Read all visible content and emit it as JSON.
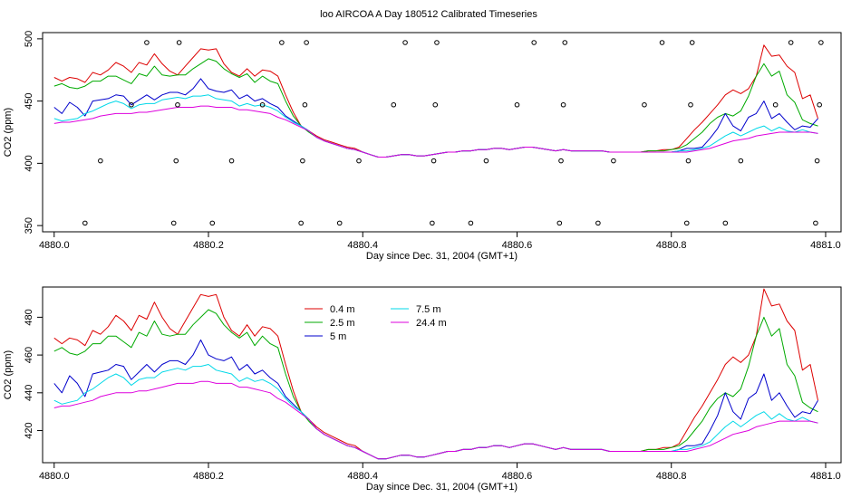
{
  "page": {
    "title": "loo AIRCOA A  Day 180512  Calibrated Timeseries"
  },
  "colors": {
    "0.4 m": "#dd0000",
    "2.5 m": "#00aa00",
    "5 m": "#0000cc",
    "7.5 m": "#00d8e8",
    "24.4 m": "#dd00dd",
    "axis": "#000000"
  },
  "chart_data": [
    {
      "type": "scatter",
      "xlabel": "Day since Dec. 31, 2004 (GMT+1)",
      "ylabel": "CO2 (ppm)",
      "xlim": [
        4879.985,
        4881.02
      ],
      "ylim": [
        345,
        505
      ],
      "xticks": [
        4880.0,
        4880.2,
        4880.4,
        4880.6,
        4880.8,
        4881.0
      ],
      "xtick_labels": [
        "4880.0",
        "4880.2",
        "4880.4",
        "4880.6",
        "4880.8",
        "4881.0"
      ],
      "yticks": [
        350,
        400,
        450,
        500
      ],
      "ytick_labels": [
        "350",
        "400",
        "450",
        "500"
      ],
      "x": [
        4880.0,
        4880.01,
        4880.02,
        4880.03,
        4880.04,
        4880.05,
        4880.06,
        4880.07,
        4880.08,
        4880.09,
        4880.1,
        4880.11,
        4880.12,
        4880.13,
        4880.14,
        4880.15,
        4880.16,
        4880.17,
        4880.18,
        4880.19,
        4880.2,
        4880.21,
        4880.22,
        4880.23,
        4880.24,
        4880.25,
        4880.26,
        4880.27,
        4880.28,
        4880.29,
        4880.3,
        4880.31,
        4880.32,
        4880.33,
        4880.34,
        4880.35,
        4880.36,
        4880.37,
        4880.38,
        4880.39,
        4880.4,
        4880.41,
        4880.42,
        4880.43,
        4880.44,
        4880.45,
        4880.46,
        4880.47,
        4880.48,
        4880.49,
        4880.5,
        4880.51,
        4880.52,
        4880.53,
        4880.54,
        4880.55,
        4880.56,
        4880.57,
        4880.58,
        4880.59,
        4880.6,
        4880.61,
        4880.62,
        4880.63,
        4880.64,
        4880.65,
        4880.66,
        4880.67,
        4880.68,
        4880.69,
        4880.7,
        4880.71,
        4880.72,
        4880.73,
        4880.74,
        4880.75,
        4880.76,
        4880.77,
        4880.78,
        4880.79,
        4880.8,
        4880.81,
        4880.82,
        4880.83,
        4880.84,
        4880.85,
        4880.86,
        4880.87,
        4880.88,
        4880.89,
        4880.9,
        4880.91,
        4880.92,
        4880.93,
        4880.94,
        4880.95,
        4880.96,
        4880.97,
        4880.98,
        4880.99
      ],
      "series": [
        {
          "name": "0.4 m",
          "values": [
            469,
            466,
            469,
            468,
            465,
            473,
            471,
            475,
            481,
            478,
            473,
            481,
            479,
            488,
            480,
            474,
            471,
            478,
            485,
            492,
            491,
            492,
            480,
            473,
            470,
            476,
            470,
            475,
            474,
            470,
            455,
            441,
            430,
            426,
            422,
            419,
            417,
            415,
            413,
            412,
            409,
            407,
            405,
            405,
            406,
            407,
            407,
            406,
            406,
            407,
            408,
            409,
            409,
            410,
            410,
            411,
            411,
            412,
            412,
            411,
            412,
            413,
            413,
            412,
            411,
            410,
            411,
            410,
            410,
            410,
            410,
            410,
            409,
            409,
            409,
            409,
            409,
            410,
            410,
            411,
            411,
            413,
            420,
            427,
            433,
            440,
            447,
            455,
            459,
            456,
            460,
            470,
            495,
            486,
            487,
            478,
            473,
            452,
            455,
            436
          ]
        },
        {
          "name": "2.5 m",
          "values": [
            462,
            464,
            461,
            460,
            462,
            466,
            466,
            470,
            470,
            467,
            464,
            472,
            470,
            478,
            471,
            470,
            471,
            471,
            476,
            480,
            484,
            482,
            476,
            472,
            469,
            472,
            465,
            470,
            466,
            464,
            450,
            438,
            430,
            425,
            421,
            418,
            416,
            414,
            412,
            411,
            409,
            407,
            405,
            405,
            406,
            407,
            407,
            406,
            406,
            407,
            408,
            409,
            409,
            410,
            410,
            411,
            411,
            412,
            412,
            411,
            412,
            413,
            413,
            412,
            411,
            410,
            411,
            410,
            410,
            410,
            410,
            410,
            409,
            409,
            409,
            409,
            409,
            410,
            410,
            410,
            411,
            412,
            415,
            420,
            425,
            432,
            437,
            440,
            438,
            442,
            454,
            470,
            480,
            470,
            474,
            455,
            449,
            435,
            432,
            430
          ]
        },
        {
          "name": "5 m",
          "values": [
            445,
            440,
            449,
            445,
            438,
            450,
            451,
            452,
            455,
            454,
            447,
            451,
            455,
            451,
            455,
            457,
            457,
            455,
            460,
            468,
            460,
            458,
            457,
            459,
            452,
            455,
            450,
            452,
            448,
            445,
            438,
            434,
            430,
            426,
            421,
            418,
            416,
            414,
            412,
            411,
            409,
            407,
            405,
            405,
            406,
            407,
            407,
            406,
            406,
            407,
            408,
            409,
            409,
            410,
            410,
            411,
            411,
            412,
            412,
            411,
            412,
            413,
            413,
            412,
            411,
            410,
            411,
            410,
            410,
            410,
            410,
            410,
            409,
            409,
            409,
            409,
            409,
            409,
            409,
            409,
            409,
            410,
            412,
            412,
            413,
            420,
            428,
            440,
            430,
            426,
            437,
            440,
            450,
            436,
            440,
            433,
            427,
            430,
            429,
            436
          ]
        },
        {
          "name": "7.5 m",
          "values": [
            436,
            434,
            435,
            436,
            440,
            442,
            445,
            448,
            450,
            448,
            444,
            447,
            448,
            448,
            451,
            452,
            453,
            452,
            454,
            454,
            455,
            452,
            451,
            450,
            446,
            448,
            446,
            447,
            445,
            442,
            437,
            433,
            430,
            426,
            421,
            418,
            416,
            414,
            412,
            411,
            409,
            407,
            405,
            405,
            406,
            407,
            407,
            406,
            406,
            407,
            408,
            409,
            409,
            410,
            410,
            411,
            411,
            412,
            412,
            411,
            412,
            413,
            413,
            412,
            411,
            410,
            411,
            410,
            410,
            410,
            410,
            410,
            409,
            409,
            409,
            409,
            409,
            409,
            409,
            409,
            409,
            410,
            410,
            411,
            412,
            414,
            418,
            422,
            425,
            422,
            425,
            428,
            430,
            426,
            429,
            426,
            425,
            427,
            425,
            424
          ]
        },
        {
          "name": "24.4 m",
          "values": [
            432,
            433,
            433,
            434,
            435,
            436,
            438,
            439,
            440,
            440,
            440,
            441,
            441,
            442,
            443,
            444,
            445,
            445,
            445,
            446,
            446,
            445,
            445,
            445,
            443,
            443,
            442,
            441,
            440,
            437,
            435,
            432,
            429,
            426,
            421,
            418,
            416,
            414,
            412,
            411,
            409,
            407,
            405,
            405,
            406,
            407,
            407,
            406,
            406,
            407,
            408,
            409,
            409,
            410,
            410,
            411,
            411,
            412,
            412,
            411,
            412,
            413,
            413,
            412,
            411,
            410,
            411,
            410,
            410,
            410,
            410,
            410,
            409,
            409,
            409,
            409,
            409,
            409,
            409,
            409,
            409,
            409,
            409,
            410,
            411,
            412,
            414,
            416,
            418,
            419,
            420,
            422,
            423,
            424,
            425,
            425,
            425,
            425,
            425,
            424
          ]
        }
      ],
      "points": {
        "x": [
          4880.04,
          4880.06,
          4880.1,
          4880.12,
          4880.155,
          4880.158,
          4880.16,
          4880.162,
          4880.205,
          4880.23,
          4880.27,
          4880.295,
          4880.32,
          4880.322,
          4880.325,
          4880.327,
          4880.37,
          4880.395,
          4880.44,
          4880.455,
          4880.49,
          4880.492,
          4880.494,
          4880.496,
          4880.54,
          4880.56,
          4880.6,
          4880.622,
          4880.655,
          4880.657,
          4880.66,
          4880.662,
          4880.705,
          4880.725,
          4880.765,
          4880.788,
          4880.82,
          4880.822,
          4880.825,
          4880.827,
          4880.87,
          4880.89,
          4880.935,
          4880.955,
          4880.987,
          4880.989,
          4880.992,
          4880.994
        ],
        "y": [
          352,
          402,
          447,
          497,
          352,
          402,
          447,
          497,
          352,
          402,
          447,
          497,
          352,
          402,
          447,
          497,
          352,
          402,
          447,
          497,
          352,
          402,
          447,
          497,
          352,
          402,
          447,
          497,
          352,
          402,
          447,
          497,
          352,
          402,
          447,
          497,
          352,
          402,
          447,
          497,
          352,
          402,
          447,
          497,
          352,
          402,
          447,
          497
        ]
      }
    },
    {
      "type": "line",
      "xlabel": "Day since Dec. 31, 2004 (GMT+1)",
      "ylabel": "CO2 (ppm)",
      "xlim": [
        4879.985,
        4881.02
      ],
      "ylim": [
        403,
        496
      ],
      "xticks": [
        4880.0,
        4880.2,
        4880.4,
        4880.6,
        4880.8,
        4881.0
      ],
      "xtick_labels": [
        "4880.0",
        "4880.2",
        "4880.4",
        "4880.6",
        "4880.8",
        "4881.0"
      ],
      "yticks": [
        420,
        440,
        460,
        480
      ],
      "ytick_labels": [
        "420",
        "440",
        "460",
        "480"
      ],
      "legend": {
        "placement": "top-center",
        "entries": [
          "0.4 m",
          "2.5 m",
          "5 m",
          "7.5 m",
          "24.4 m"
        ]
      }
    }
  ]
}
